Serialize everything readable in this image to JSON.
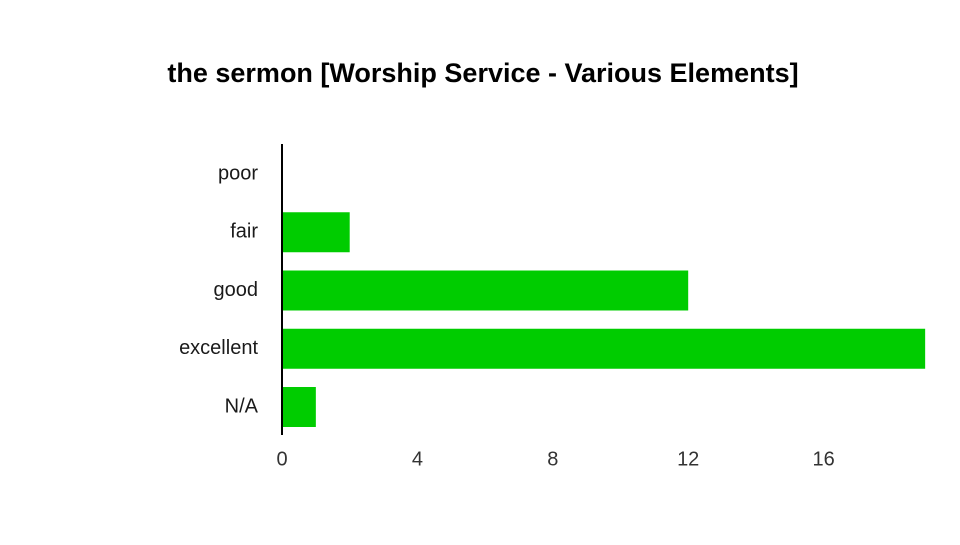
{
  "chart_data": {
    "type": "bar",
    "orientation": "horizontal",
    "title": "the sermon [Worship Service - Various Elements]",
    "xlabel": "",
    "ylabel": "",
    "categories": [
      "poor",
      "fair",
      "good",
      "excellent",
      "N/A"
    ],
    "values": [
      0,
      2,
      12,
      19,
      1
    ],
    "xlim": [
      0,
      19
    ],
    "xticks": [
      0,
      4,
      8,
      12,
      16
    ],
    "bar_color": "#00cc00",
    "axis_color": "#000000",
    "grid": false,
    "legend": "none"
  }
}
